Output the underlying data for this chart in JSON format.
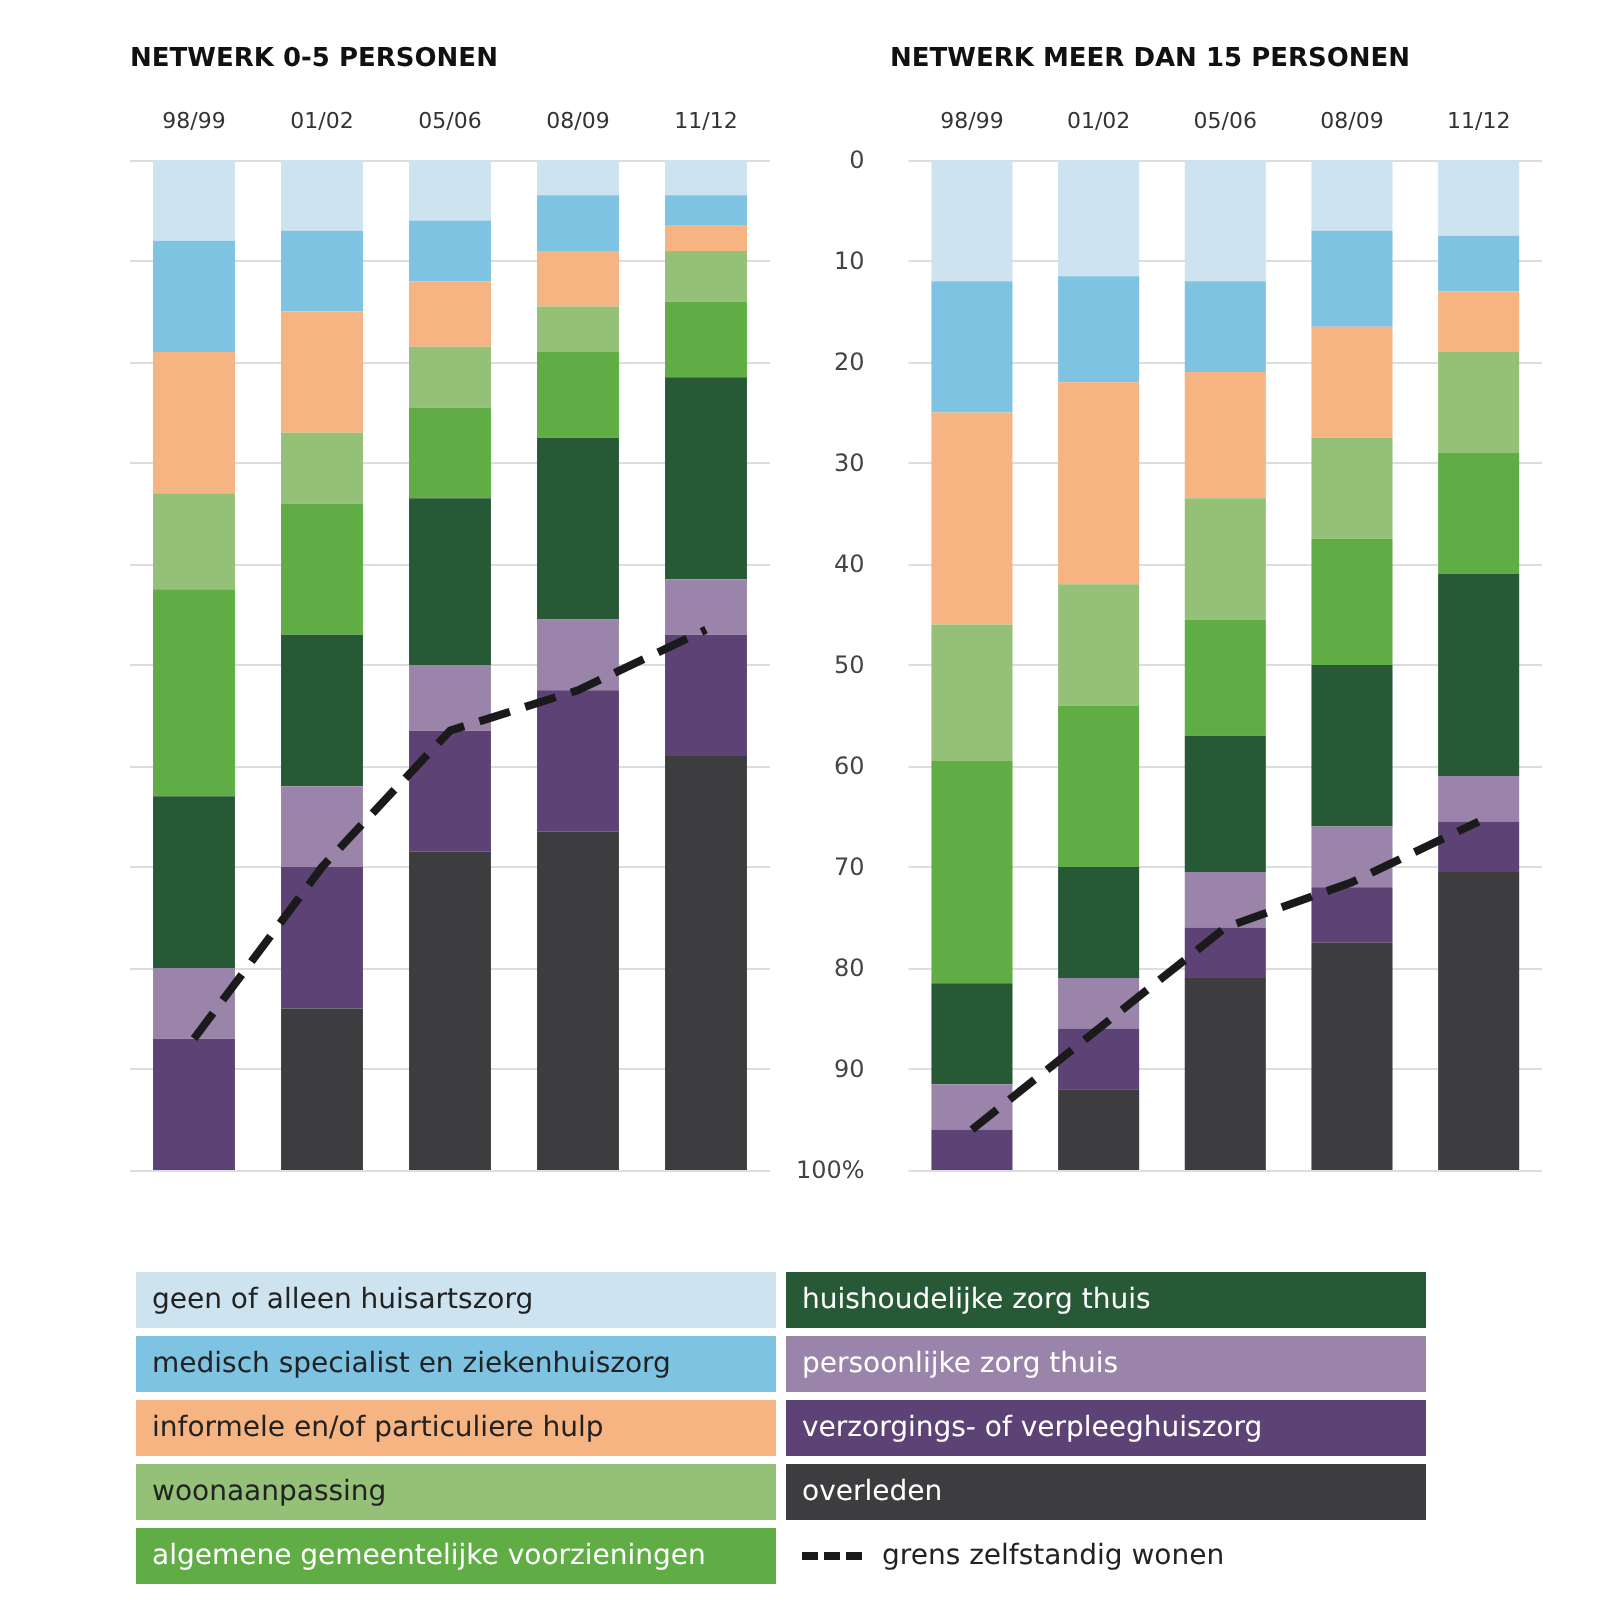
{
  "chart_data": [
    {
      "type": "bar",
      "title": "NETWERK 0-5 PERSONEN",
      "categories": [
        "98/99",
        "01/02",
        "05/06",
        "08/09",
        "11/12"
      ],
      "stacked": true,
      "legend": "bottom",
      "grid": "y",
      "tick_labels": "x",
      "ylim": [
        100,
        0
      ],
      "yticks": [
        0,
        10,
        20,
        30,
        40,
        50,
        60,
        70,
        80,
        90,
        100
      ],
      "series": [
        {
          "name": "geen of alleen huisartszorg",
          "color": "#cde3ef",
          "values": [
            8,
            7,
            6,
            3.5,
            3.5
          ]
        },
        {
          "name": "medisch specialist en ziekenhuiszorg",
          "color": "#7fc3e3",
          "values": [
            11,
            8,
            6,
            5.5,
            3
          ]
        },
        {
          "name": "informele en/of particuliere hulp",
          "color": "#f5b482",
          "values": [
            14,
            12,
            6.5,
            5.5,
            2.5
          ]
        },
        {
          "name": "woonaanpassing",
          "color": "#94c077",
          "values": [
            9.5,
            7,
            6,
            4.5,
            5
          ]
        },
        {
          "name": "algemene gemeentelijke voorzieningen",
          "color": "#60ad45",
          "values": [
            20.5,
            13,
            9,
            8.5,
            7.5
          ]
        },
        {
          "name": "huishoudelijke zorg thuis",
          "color": "#275936",
          "values": [
            17,
            15,
            16.5,
            18,
            20
          ]
        },
        {
          "name": "persoonlijke zorg thuis",
          "color": "#9b84aa",
          "values": [
            7,
            8,
            6.5,
            7,
            5.5
          ]
        },
        {
          "name": "verzorgings- of verpleeghuiszorg",
          "color": "#5c4275",
          "values": [
            13,
            14,
            12,
            14,
            12
          ]
        },
        {
          "name": "overleden",
          "color": "#3d3d3f",
          "values": [
            0,
            16,
            31.5,
            33.5,
            41
          ]
        },
        {
          "name": "grens zelfstandig wonen",
          "type": "line",
          "color": "#1a1a1a",
          "line_style": "dashed",
          "marker": "none",
          "values": [
            87,
            70,
            56.5,
            52.5,
            46.5
          ]
        }
      ]
    },
    {
      "type": "bar",
      "title": "NETWERK MEER DAN 15 PERSONEN",
      "categories": [
        "98/99",
        "01/02",
        "05/06",
        "08/09",
        "11/12"
      ],
      "stacked": true,
      "grid": "y",
      "ylim": [
        100,
        0
      ],
      "yticks": [
        0,
        10,
        20,
        30,
        40,
        50,
        60,
        70,
        80,
        90,
        {
          "value": 100,
          "label": "100%"
        }
      ],
      "series": [
        {
          "color": "#cde3ef",
          "values": [
            12,
            11.5,
            12,
            7,
            7.5
          ]
        },
        {
          "color": "#7fc3e3",
          "values": [
            13,
            10.5,
            9,
            9.5,
            5.5
          ]
        },
        {
          "color": "#f5b482",
          "values": [
            21,
            20,
            12.5,
            11,
            6
          ]
        },
        {
          "color": "#94c077",
          "values": [
            13.5,
            12,
            12,
            10,
            10
          ]
        },
        {
          "color": "#60ad45",
          "values": [
            22,
            16,
            11.5,
            12.5,
            12
          ]
        },
        {
          "color": "#275936",
          "values": [
            10,
            11,
            13.5,
            16,
            20
          ]
        },
        {
          "color": "#9b84aa",
          "values": [
            4.5,
            5,
            5.5,
            6,
            4.5
          ]
        },
        {
          "color": "#5c4275",
          "values": [
            4,
            6,
            5,
            5.5,
            5
          ]
        },
        {
          "color": "#3d3d3f",
          "values": [
            0,
            8,
            19,
            22.5,
            29.5
          ]
        },
        {
          "type": "line",
          "color": "#1a1a1a",
          "line_style": "dashed",
          "marker": "none",
          "values": [
            96,
            86,
            76,
            71.5,
            65.5
          ]
        }
      ]
    }
  ]
}
